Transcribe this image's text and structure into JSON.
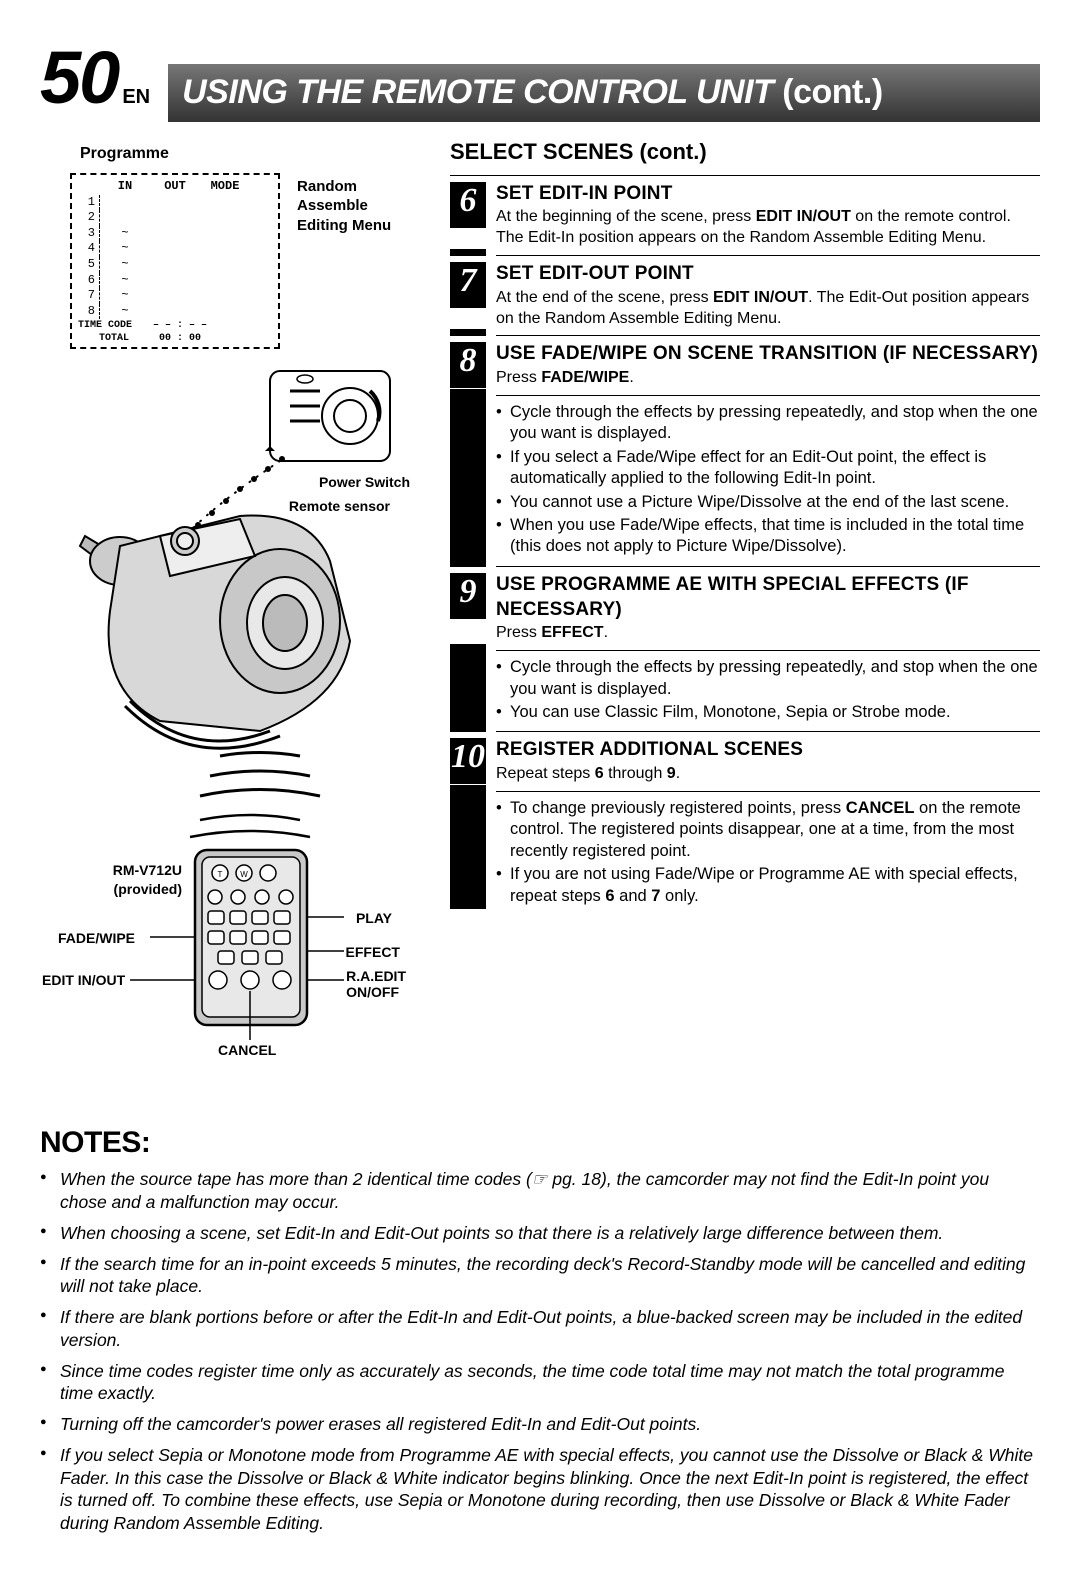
{
  "page_number": "50",
  "page_lang": "EN",
  "header_title": "USING THE REMOTE CONTROL UNIT",
  "header_cont": "(cont.)",
  "programme_label": "Programme",
  "menu_caption": "Random Assemble Editing Menu",
  "menu_headers": {
    "in": "IN",
    "out": "OUT",
    "mode": "MODE"
  },
  "menu_rows": [
    {
      "idx": "1",
      "in": "",
      "out": "",
      "mode": ""
    },
    {
      "idx": "2",
      "in": "",
      "out": "",
      "mode": ""
    },
    {
      "idx": "3",
      "in": "~",
      "out": "",
      "mode": ""
    },
    {
      "idx": "4",
      "in": "~",
      "out": "",
      "mode": ""
    },
    {
      "idx": "5",
      "in": "~",
      "out": "",
      "mode": ""
    },
    {
      "idx": "6",
      "in": "~",
      "out": "",
      "mode": ""
    },
    {
      "idx": "7",
      "in": "~",
      "out": "",
      "mode": ""
    },
    {
      "idx": "8",
      "in": "~",
      "out": "",
      "mode": ""
    }
  ],
  "menu_footer": {
    "timecode": "TIME CODE",
    "dashes": "– – : – –",
    "total": "TOTAL",
    "zero": "00 : 00"
  },
  "illus_labels": {
    "power_switch": "Power Switch",
    "remote_sensor": "Remote sensor",
    "model": "RM-V712U",
    "provided": "(provided)",
    "play": "PLAY",
    "fade_wipe": "FADE/WIPE",
    "effect": "EFFECT",
    "edit_in_out": "EDIT IN/OUT",
    "ra_edit": "R.A.EDIT",
    "on_off": "ON/OFF",
    "cancel": "CANCEL"
  },
  "section_title": "SELECT SCENES (cont.)",
  "steps": [
    {
      "num": "6",
      "title": "SET EDIT-IN POINT",
      "body_pre": "At the beginning of the scene, press ",
      "body_bold1": "EDIT IN/OUT",
      "body_post": " on the remote control. The Edit-In position appears on the Random Assemble Editing Menu.",
      "bullets": []
    },
    {
      "num": "7",
      "title": "SET EDIT-OUT POINT",
      "body_pre": "At the end of the scene, press ",
      "body_bold1": "EDIT IN/OUT",
      "body_post": ". The Edit-Out position appears on the Random Assemble Editing Menu.",
      "bullets": []
    },
    {
      "num": "8",
      "title": "USE FADE/WIPE ON SCENE TRANSITION (IF NECESSARY)",
      "sub_pre": "Press ",
      "sub_bold": "FADE/WIPE",
      "sub_post": ".",
      "bullets": [
        "Cycle through the effects by pressing repeatedly, and stop when the one you want is displayed.",
        "If you select a Fade/Wipe effect for an Edit-Out point, the effect is automatically applied to the following Edit-In point.",
        "You cannot use a Picture Wipe/Dissolve at the end of the last scene.",
        "When you use Fade/Wipe effects, that time is included in the total time (this does not apply to Picture Wipe/Dissolve)."
      ]
    },
    {
      "num": "9",
      "title": "USE PROGRAMME AE WITH SPECIAL EFFECTS (IF NECESSARY)",
      "sub_pre": "Press ",
      "sub_bold": "EFFECT",
      "sub_post": ".",
      "bullets": [
        "Cycle through the effects by pressing repeatedly, and stop when the one you want is displayed.",
        "You can use Classic Film, Monotone, Sepia or Strobe mode."
      ]
    },
    {
      "num": "10",
      "title": "REGISTER ADDITIONAL SCENES",
      "sub_pre": "Repeat steps ",
      "sub_bold": "6",
      "sub_mid": " through ",
      "sub_bold2": "9",
      "sub_post": ".",
      "bullets": [
        "To change previously registered points, press <b>CANCEL</b> on the remote control. The registered points disappear, one at a time, from the most recently registered point.",
        "If you are not using Fade/Wipe or Programme AE with special effects, repeat steps <b>6</b> and <b>7</b> only."
      ]
    }
  ],
  "notes_title": "NOTES:",
  "notes": [
    "When the source tape has more than 2 identical time codes (☞ pg. 18), the camcorder may not find the Edit-In point you chose and a malfunction may occur.",
    "When choosing a scene, set Edit-In and Edit-Out points so that there is a relatively large difference between them.",
    "If the search time for an in-point exceeds 5 minutes, the recording deck's Record-Standby mode will be cancelled and editing will not take place.",
    "If there are blank portions before or after the Edit-In and Edit-Out points, a blue-backed screen may be included in the edited version.",
    "Since time codes register time only as accurately as seconds, the time code total time may not match the total programme time exactly.",
    "Turning off the camcorder's power erases all registered  Edit-In and Edit-Out points.",
    "If you select Sepia or Monotone mode from Programme AE with special effects, you cannot use the Dissolve or Black & White Fader. In this case the Dissolve or Black & White indicator begins blinking. Once the next Edit-In point is registered, the effect is turned off. To combine these effects, use Sepia or Monotone during recording, then use Dissolve or Black & White Fader during Random Assemble Editing."
  ]
}
